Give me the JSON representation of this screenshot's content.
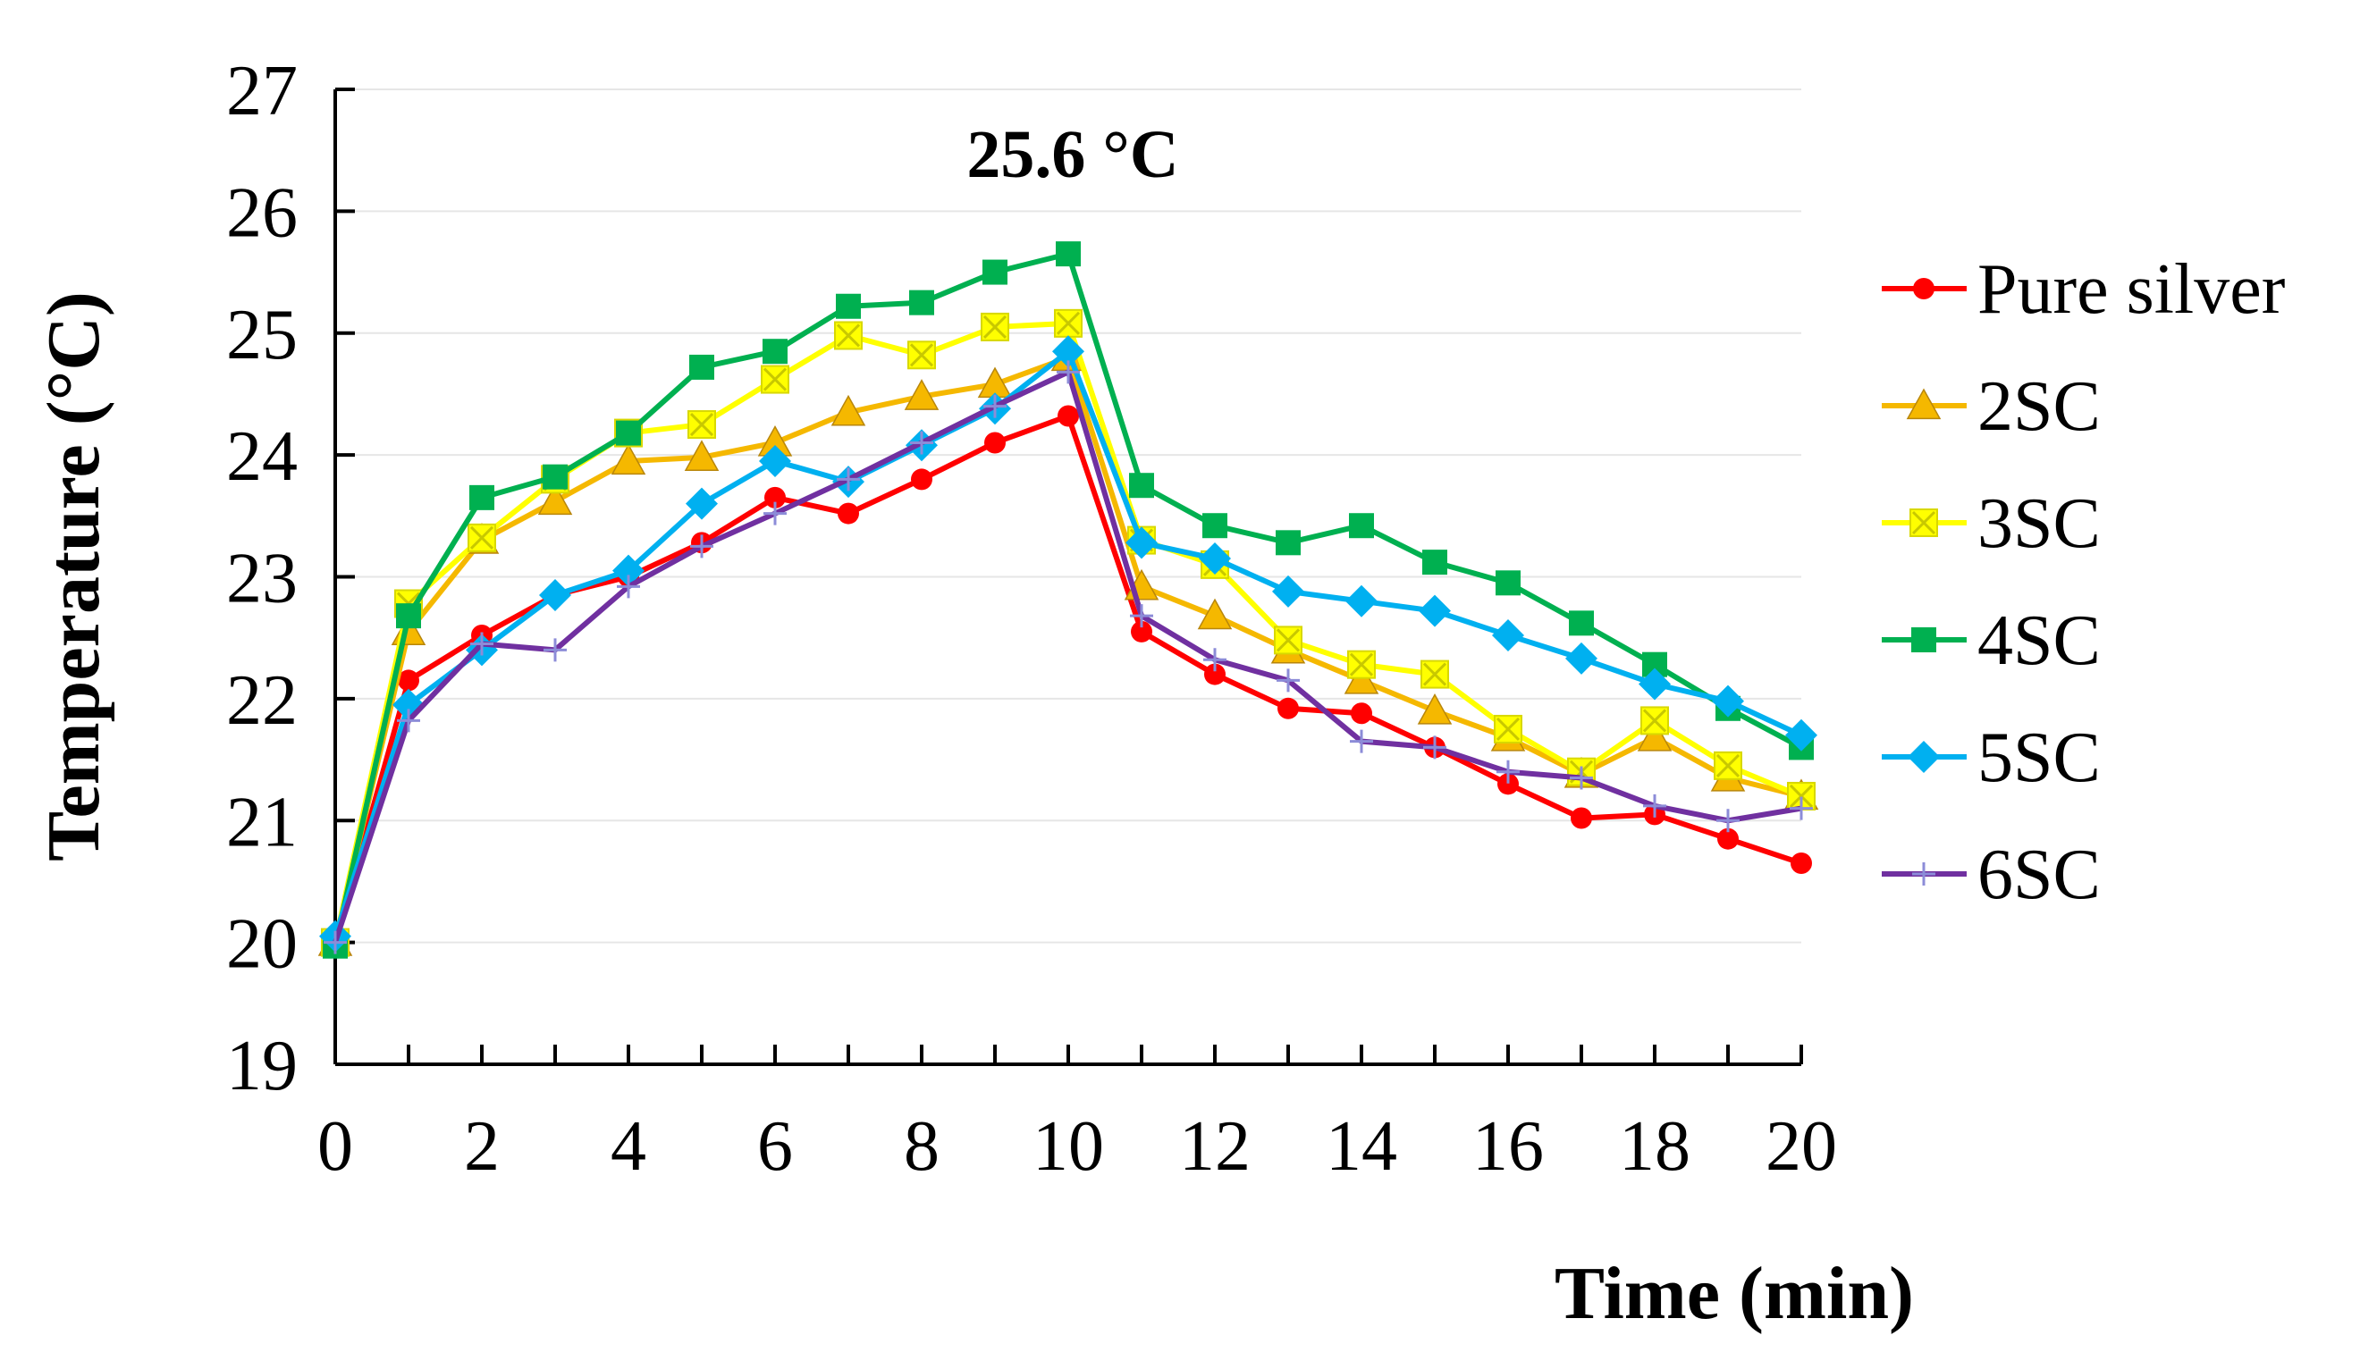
{
  "chart_data": {
    "type": "line",
    "xlabel": "Time (min)",
    "ylabel": "Temperature (°C)",
    "annotation": "25.6 °C",
    "xlim": [
      0,
      20
    ],
    "ylim": [
      19,
      27
    ],
    "x_ticks": [
      0,
      2,
      4,
      6,
      8,
      10,
      12,
      14,
      16,
      18,
      20
    ],
    "y_ticks": [
      19,
      20,
      21,
      22,
      23,
      24,
      25,
      26,
      27
    ],
    "grid": "horizontal",
    "legend_position": "right",
    "x": [
      0,
      1,
      2,
      3,
      4,
      5,
      6,
      7,
      8,
      9,
      10,
      11,
      12,
      13,
      14,
      15,
      16,
      17,
      18,
      19,
      20
    ],
    "series": [
      {
        "name": "Pure silver",
        "color": "#ff0000",
        "marker": "circle",
        "values": [
          20.0,
          22.15,
          22.52,
          22.85,
          23.0,
          23.28,
          23.65,
          23.52,
          23.8,
          24.1,
          24.32,
          22.55,
          22.2,
          21.92,
          21.88,
          21.6,
          21.3,
          21.02,
          21.05,
          20.85,
          20.65
        ]
      },
      {
        "name": "2SC",
        "color": "#f5b800",
        "marker": "triangle",
        "values": [
          20.0,
          22.55,
          23.3,
          23.62,
          23.95,
          23.98,
          24.1,
          24.35,
          24.48,
          24.58,
          24.8,
          22.92,
          22.68,
          22.4,
          22.15,
          21.9,
          21.68,
          21.38,
          21.68,
          21.35,
          21.2
        ]
      },
      {
        "name": "3SC",
        "color": "#ffff00",
        "marker": "x-square",
        "values": [
          20.0,
          22.78,
          23.32,
          23.8,
          24.18,
          24.25,
          24.62,
          24.98,
          24.82,
          25.05,
          25.08,
          23.3,
          23.1,
          22.48,
          22.28,
          22.2,
          21.75,
          21.4,
          21.82,
          21.45,
          21.2
        ]
      },
      {
        "name": "4SC",
        "color": "#00b050",
        "marker": "square",
        "values": [
          19.97,
          22.68,
          23.65,
          23.82,
          24.18,
          24.72,
          24.85,
          25.22,
          25.25,
          25.5,
          25.65,
          23.75,
          23.42,
          23.28,
          23.42,
          23.12,
          22.95,
          22.62,
          22.28,
          21.92,
          21.6
        ]
      },
      {
        "name": "5SC",
        "color": "#00b0f0",
        "marker": "diamond",
        "values": [
          20.05,
          21.95,
          22.4,
          22.85,
          23.05,
          23.6,
          23.95,
          23.78,
          24.08,
          24.38,
          24.85,
          23.28,
          23.15,
          22.88,
          22.8,
          22.72,
          22.52,
          22.33,
          22.12,
          21.98,
          21.7
        ]
      },
      {
        "name": "6SC",
        "color": "#7030a0",
        "marker": "plus",
        "values": [
          20.0,
          21.82,
          22.45,
          22.4,
          22.92,
          23.25,
          23.52,
          23.8,
          24.1,
          24.4,
          24.68,
          22.68,
          22.32,
          22.15,
          21.65,
          21.6,
          21.4,
          21.35,
          21.12,
          21.0,
          21.1
        ]
      }
    ]
  }
}
